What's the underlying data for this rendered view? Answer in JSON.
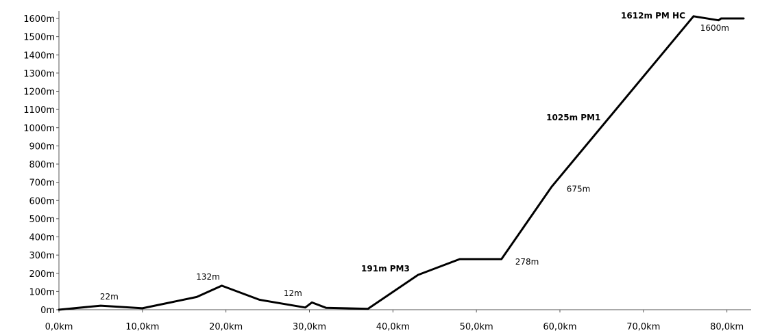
{
  "chart_data": {
    "type": "line",
    "title": "",
    "xlabel": "",
    "ylabel": "",
    "xlim": [
      0,
      82
    ],
    "ylim": [
      0,
      1600
    ],
    "grid": false,
    "x_ticks": [
      0,
      10,
      20,
      30,
      40,
      50,
      60,
      70,
      80
    ],
    "x_tick_labels": [
      "0,0km",
      "10,0km",
      "20,0km",
      "30,0km",
      "40,0km",
      "50,0km",
      "60,0km",
      "70,0km",
      "80,0km"
    ],
    "y_ticks": [
      0,
      100,
      200,
      300,
      400,
      500,
      600,
      700,
      800,
      900,
      1000,
      1100,
      1200,
      1300,
      1400,
      1500,
      1600
    ],
    "y_tick_labels": [
      "0m",
      "100m",
      "200m",
      "300m",
      "400m",
      "500m",
      "600m",
      "700m",
      "800m",
      "900m",
      "1000m",
      "1100m",
      "1200m",
      "1300m",
      "1400m",
      "1500m",
      "1600m"
    ],
    "series": [
      {
        "color": "#000000",
        "x": [
          0,
          5,
          10,
          16.5,
          19.5,
          24,
          29.5,
          30.3,
          32,
          37,
          43,
          48,
          53,
          59,
          76,
          79,
          79.3,
          82
        ],
        "y": [
          0,
          22,
          8,
          70,
          132,
          55,
          12,
          40,
          10,
          5,
          191,
          278,
          278,
          675,
          1612,
          1590,
          1600,
          1600
        ]
      }
    ],
    "annotations": [
      {
        "text": "22m",
        "x": 5,
        "y": 22,
        "bold": false
      },
      {
        "text": "132m",
        "x": 19.5,
        "y": 132,
        "bold": false
      },
      {
        "text": "12m",
        "x": 29.5,
        "y": 12,
        "bold": false
      },
      {
        "text": "191m PM3",
        "x": 43,
        "y": 191,
        "bold": true
      },
      {
        "text": "278m",
        "x": 53,
        "y": 278,
        "bold": false
      },
      {
        "text": "675m",
        "x": 59,
        "y": 675,
        "bold": false
      },
      {
        "text": "1025m PM1",
        "x": 63.3,
        "y": 1025,
        "bold": true
      },
      {
        "text": "1612m PM HC",
        "x": 76,
        "y": 1612,
        "bold": true
      },
      {
        "text": "1600m",
        "x": 80.5,
        "y": 1600,
        "bold": false
      }
    ]
  }
}
